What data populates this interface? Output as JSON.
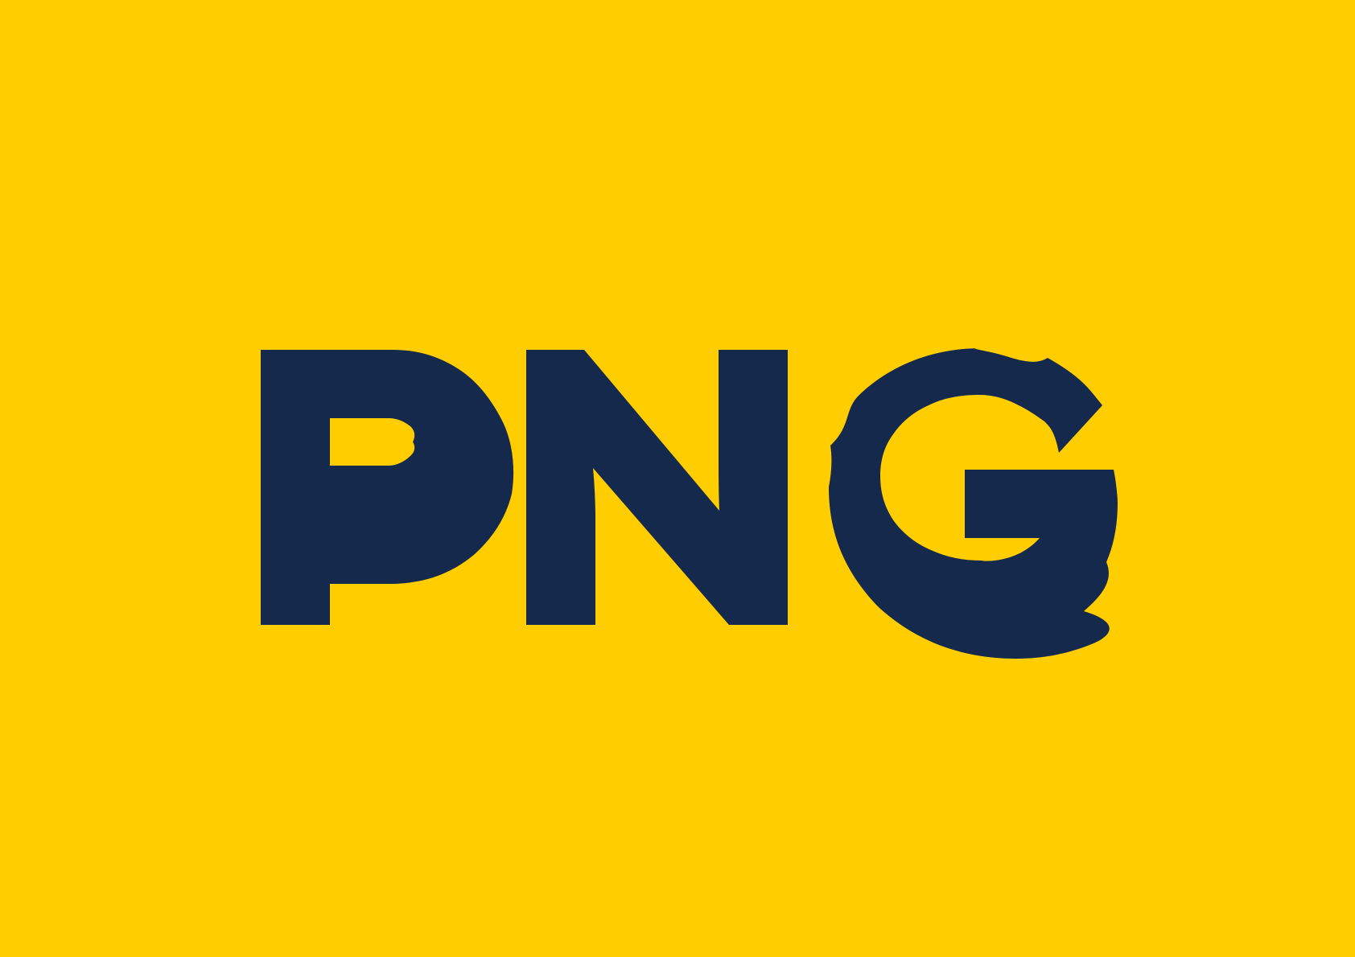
{
  "logo": {
    "text": "PNG",
    "letters": [
      "P",
      "N",
      "G"
    ]
  },
  "colors": {
    "background": "#FFCD00",
    "letters": "#15294D"
  }
}
